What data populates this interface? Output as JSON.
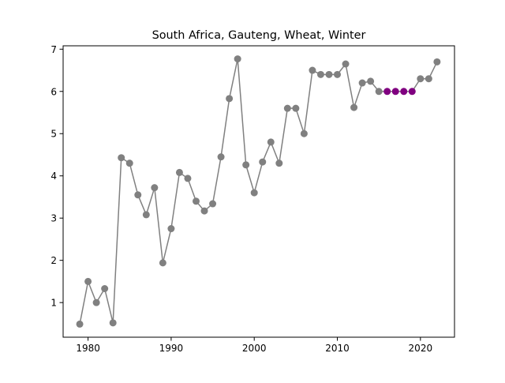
{
  "chart_data": {
    "type": "line",
    "title": "South Africa, Gauteng, Wheat, Winter",
    "xlabel": "",
    "ylabel": "",
    "xlim": [
      1977,
      2024.1
    ],
    "ylim": [
      0.18,
      7.08
    ],
    "xticks": [
      1980,
      1990,
      2000,
      2010,
      2020
    ],
    "yticks": [
      1,
      2,
      3,
      4,
      5,
      6,
      7
    ],
    "grid": false,
    "legend": "none",
    "colors": {
      "line": "#808080",
      "marker": "#808080",
      "highlight": "#800080",
      "axes": "#000000"
    },
    "x": [
      1979,
      1980,
      1981,
      1982,
      1983,
      1984,
      1985,
      1986,
      1987,
      1988,
      1989,
      1990,
      1991,
      1992,
      1993,
      1994,
      1995,
      1996,
      1997,
      1998,
      1999,
      2000,
      2001,
      2002,
      2003,
      2004,
      2005,
      2006,
      2007,
      2008,
      2009,
      2010,
      2011,
      2012,
      2013,
      2014,
      2015,
      2016,
      2017,
      2018,
      2019,
      2020,
      2021,
      2022
    ],
    "y": [
      0.49,
      1.5,
      1.0,
      1.33,
      0.52,
      4.43,
      4.3,
      3.55,
      3.08,
      3.72,
      1.94,
      2.75,
      4.08,
      3.94,
      3.4,
      3.17,
      3.34,
      4.45,
      5.83,
      6.77,
      4.26,
      3.6,
      4.33,
      4.8,
      4.3,
      5.6,
      5.6,
      5.0,
      6.5,
      6.4,
      6.4,
      6.4,
      6.65,
      5.62,
      6.2,
      6.24,
      6.0,
      6.0,
      6.0,
      6.0,
      6.0,
      6.3,
      6.3,
      6.7
    ],
    "highlighted_x": [
      2016,
      2017,
      2018,
      2019
    ]
  }
}
